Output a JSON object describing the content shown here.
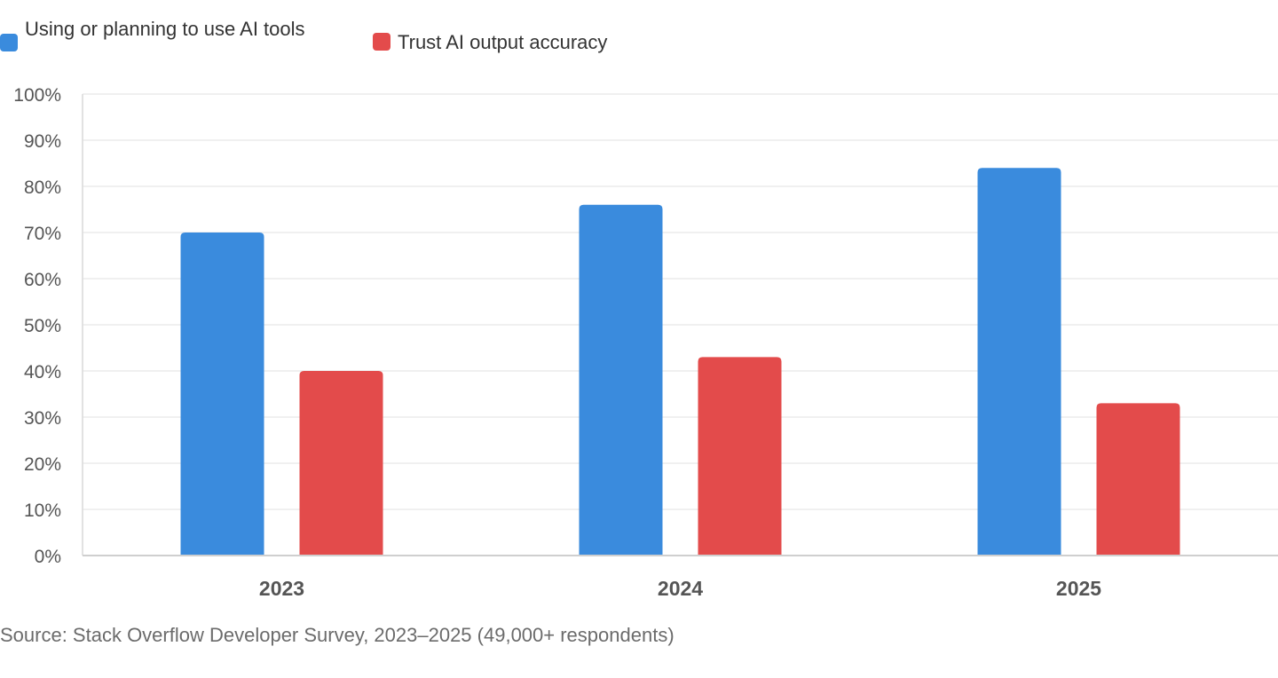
{
  "chart_data": {
    "type": "bar",
    "categories": [
      "2023",
      "2024",
      "2025"
    ],
    "series": [
      {
        "name": "Using or planning to use AI tools",
        "values": [
          70,
          76,
          84
        ],
        "color": "#3a8bdd"
      },
      {
        "name": "Trust AI output accuracy",
        "values": [
          40,
          43,
          33
        ],
        "color": "#e34b4b"
      }
    ],
    "ylim": [
      0,
      100
    ],
    "yticks": [
      0,
      10,
      20,
      30,
      40,
      50,
      60,
      70,
      80,
      90,
      100
    ],
    "ytick_labels": [
      "0%",
      "10%",
      "20%",
      "30%",
      "40%",
      "50%",
      "60%",
      "70%",
      "80%",
      "90%",
      "100%"
    ],
    "legend_position": "top-left",
    "grid": true
  },
  "source_note": "Source: Stack Overflow Developer Survey, 2023–2025 (49,000+ respondents)"
}
